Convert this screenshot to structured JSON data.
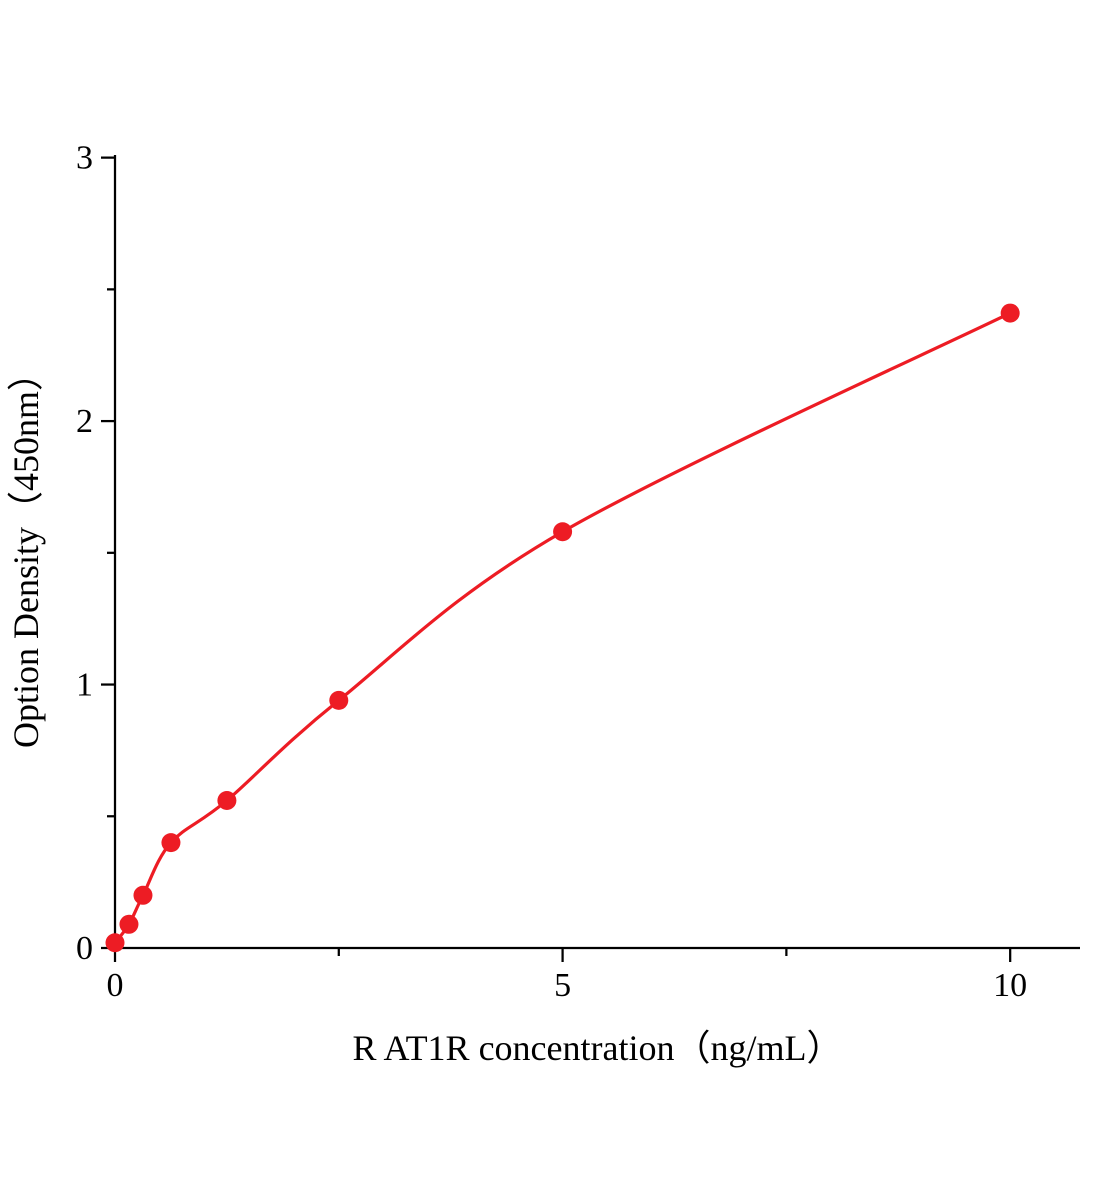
{
  "chart_data": {
    "type": "scatter",
    "title": "",
    "xlabel": "R AT1R concentration（ng/mL）",
    "ylabel": "Option Density（450nm）",
    "x": [
      0,
      0.156,
      0.3125,
      0.625,
      1.25,
      2.5,
      5,
      10
    ],
    "y": [
      0.02,
      0.09,
      0.2,
      0.4,
      0.56,
      0.94,
      1.58,
      2.41
    ],
    "xlim": [
      0,
      10.78
    ],
    "ylim": [
      0,
      3.01
    ],
    "x_ticks": [
      0,
      5,
      10
    ],
    "y_ticks": [
      0,
      1,
      2,
      3
    ],
    "x_minor_ticks": [
      2.5,
      7.5
    ],
    "y_minor_ticks": [
      0.5,
      1.5,
      2.5
    ],
    "marker_color": "#ed1c24",
    "line_color": "#ed1c24",
    "axis_color": "#000000",
    "grid": false,
    "legend": "none",
    "curve": "smooth-fit"
  }
}
